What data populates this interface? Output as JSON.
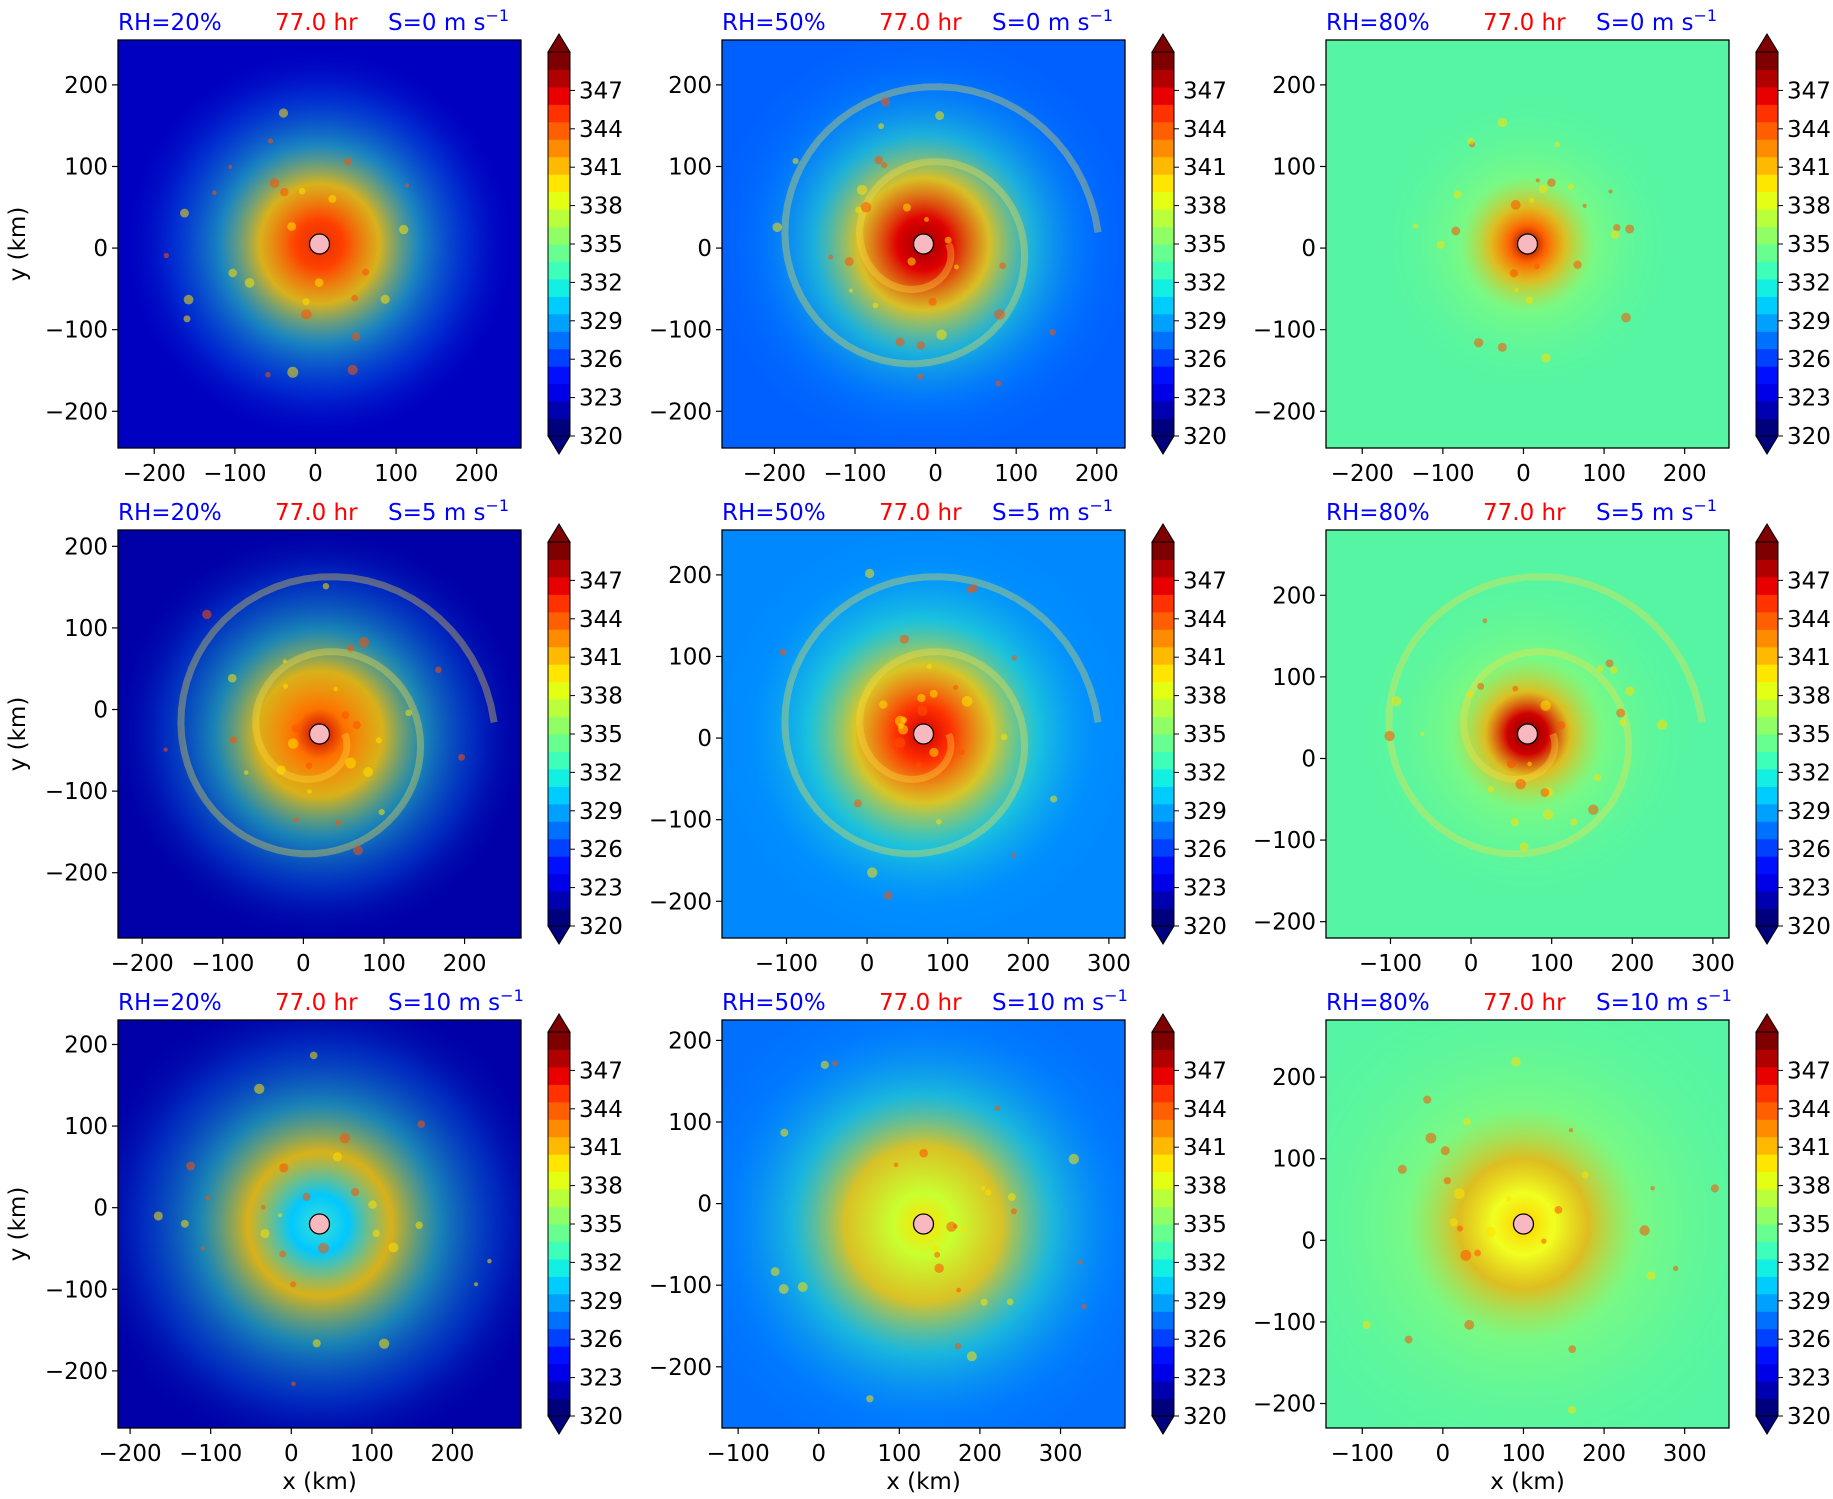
{
  "figure": {
    "colorbar": {
      "ticks": [
        347,
        344,
        341,
        338,
        335,
        332,
        329,
        326,
        323,
        320
      ],
      "vmin": 320,
      "vmax": 350,
      "extend": "both",
      "colors": [
        "#00007f",
        "#0000b0",
        "#0000e8",
        "#0010ff",
        "#0040ff",
        "#0070ff",
        "#00a0ff",
        "#00ccff",
        "#13f0e3",
        "#3dffba",
        "#66ff90",
        "#90ff66",
        "#baff3c",
        "#e3ff13",
        "#ffe600",
        "#ffb900",
        "#ff8c00",
        "#ff5f00",
        "#ff3200",
        "#e80000",
        "#b10000",
        "#7f0000"
      ]
    },
    "panels": [
      {
        "rh": "RH=20%",
        "time": "77.0 hr",
        "shear": "S=0 m s",
        "sup": "−1",
        "center": [
          5,
          5
        ],
        "xticks": [
          -200,
          -100,
          0,
          100,
          200
        ],
        "xtick_labels": [
          "−200",
          "−100",
          "0",
          "100",
          "200"
        ],
        "yticks": [
          200,
          100,
          0,
          -100,
          -200
        ],
        "ytick_labels": [
          "200",
          "100",
          "0",
          "−100",
          "−200"
        ],
        "xlim": [
          -245,
          255
        ],
        "ylim": [
          -245,
          255
        ],
        "xlabel": "",
        "ylabel": "y (km)",
        "field": {
          "bg": "#0000c0",
          "core": "#ff4000",
          "eye": "#e03000",
          "r": 200,
          "spiral": false
        }
      },
      {
        "rh": "RH=50%",
        "time": "77.0 hr",
        "shear": "S=0 m s",
        "sup": "−1",
        "center": [
          -15,
          5
        ],
        "xticks": [
          -200,
          -100,
          0,
          100,
          200
        ],
        "xtick_labels": [
          "−200",
          "−100",
          "0",
          "100",
          "200"
        ],
        "yticks": [
          200,
          100,
          0,
          -100,
          -200
        ],
        "ytick_labels": [
          "200",
          "100",
          "0",
          "−100",
          "−200"
        ],
        "xlim": [
          -265,
          235
        ],
        "ylim": [
          -245,
          255
        ],
        "xlabel": "",
        "ylabel": "",
        "field": {
          "bg": "#0060ff",
          "core": "#e00000",
          "eye": "#9a0000",
          "r": 220,
          "spiral": true
        }
      },
      {
        "rh": "RH=80%",
        "time": "77.0 hr",
        "shear": "S=0 m s",
        "sup": "−1",
        "center": [
          5,
          5
        ],
        "xticks": [
          -200,
          -100,
          0,
          100,
          200
        ],
        "xtick_labels": [
          "−200",
          "−100",
          "0",
          "100",
          "200"
        ],
        "yticks": [
          200,
          100,
          0,
          -100,
          -200
        ],
        "ytick_labels": [
          "200",
          "100",
          "0",
          "−100",
          "−200"
        ],
        "xlim": [
          -245,
          255
        ],
        "ylim": [
          -245,
          255
        ],
        "xlabel": "",
        "ylabel": "",
        "field": {
          "bg": "#56f5a3",
          "core": "#ff6000",
          "eye": "#7f0000",
          "r": 150,
          "spiral": false
        }
      },
      {
        "rh": "RH=20%",
        "time": "77.0 hr",
        "shear": "S=5 m s",
        "sup": "−1",
        "center": [
          20,
          -30
        ],
        "xticks": [
          -200,
          -100,
          0,
          100,
          200
        ],
        "xtick_labels": [
          "−200",
          "−100",
          "0",
          "100",
          "200"
        ],
        "yticks": [
          200,
          100,
          0,
          -100,
          -200
        ],
        "ytick_labels": [
          "200",
          "100",
          "0",
          "−100",
          "−200"
        ],
        "xlim": [
          -230,
          270
        ],
        "ylim": [
          -280,
          220
        ],
        "xlabel": "",
        "ylabel": "y (km)",
        "field": {
          "bg": "#0000a8",
          "core": "#ff7000",
          "eye": "#c00000",
          "r": 210,
          "spiral": true
        }
      },
      {
        "rh": "RH=50%",
        "time": "77.0 hr",
        "shear": "S=5 m s",
        "sup": "−1",
        "center": [
          70,
          5
        ],
        "xticks": [
          -100,
          0,
          100,
          200,
          300
        ],
        "xtick_labels": [
          "−100",
          "0",
          "100",
          "200",
          "300"
        ],
        "yticks": [
          200,
          100,
          0,
          -100,
          -200
        ],
        "ytick_labels": [
          "200",
          "100",
          "0",
          "−100",
          "−200"
        ],
        "xlim": [
          -180,
          320
        ],
        "ylim": [
          -245,
          255
        ],
        "xlabel": "",
        "ylabel": "",
        "field": {
          "bg": "#0088ff",
          "core": "#ff3000",
          "eye": "#d00000",
          "r": 230,
          "spiral": true
        }
      },
      {
        "rh": "RH=80%",
        "time": "77.0 hr",
        "shear": "S=5 m s",
        "sup": "−1",
        "center": [
          70,
          30
        ],
        "xticks": [
          -100,
          0,
          100,
          200,
          300
        ],
        "xtick_labels": [
          "−100",
          "0",
          "100",
          "200",
          "300"
        ],
        "yticks": [
          200,
          100,
          0,
          -100,
          -200
        ],
        "ytick_labels": [
          "200",
          "100",
          "0",
          "−100",
          "−200"
        ],
        "xlim": [
          -180,
          320
        ],
        "ylim": [
          -220,
          280
        ],
        "xlabel": "",
        "ylabel": "",
        "field": {
          "bg": "#56f5a3",
          "core": "#d00000",
          "eye": "#7f0000",
          "r": 170,
          "spiral": true
        }
      },
      {
        "rh": "RH=20%",
        "time": "77.0 hr",
        "shear": "S=10 m s",
        "sup": "−1",
        "center": [
          35,
          -20
        ],
        "xticks": [
          -200,
          -100,
          0,
          100,
          200
        ],
        "xtick_labels": [
          "−200",
          "−100",
          "0",
          "100",
          "200"
        ],
        "yticks": [
          200,
          100,
          0,
          -100,
          -200
        ],
        "ytick_labels": [
          "200",
          "100",
          "0",
          "−100",
          "−200"
        ],
        "xlim": [
          -215,
          285
        ],
        "ylim": [
          -270,
          230
        ],
        "xlabel": "x (km)",
        "ylabel": "y (km)",
        "field": {
          "bg": "#0000a8",
          "core": "#00c8ff",
          "eye": "#40e0d0",
          "r": 240,
          "spiral": false
        }
      },
      {
        "rh": "RH=50%",
        "time": "77.0 hr",
        "shear": "S=10 m s",
        "sup": "−1",
        "center": [
          130,
          -25
        ],
        "xticks": [
          -100,
          0,
          100,
          200,
          300
        ],
        "xtick_labels": [
          "−100",
          "0",
          "100",
          "200",
          "300"
        ],
        "yticks": [
          200,
          100,
          0,
          -100,
          -200
        ],
        "ytick_labels": [
          "200",
          "100",
          "0",
          "−100",
          "−200"
        ],
        "xlim": [
          -120,
          380
        ],
        "ylim": [
          -275,
          225
        ],
        "xlabel": "x (km)",
        "ylabel": "",
        "field": {
          "bg": "#0070ff",
          "core": "#c8ff30",
          "eye": "#ffe000",
          "r": 260,
          "spiral": false
        }
      },
      {
        "rh": "RH=80%",
        "time": "77.0 hr",
        "shear": "S=10 m s",
        "sup": "−1",
        "center": [
          100,
          20
        ],
        "xticks": [
          -100,
          0,
          100,
          200,
          300
        ],
        "xtick_labels": [
          "−100",
          "0",
          "100",
          "200",
          "300"
        ],
        "yticks": [
          200,
          100,
          0,
          -100,
          -200
        ],
        "ytick_labels": [
          "200",
          "100",
          "0",
          "−100",
          "−200"
        ],
        "xlim": [
          -145,
          355
        ],
        "ylim": [
          -230,
          270
        ],
        "xlabel": "x (km)",
        "ylabel": "",
        "field": {
          "bg": "#56f5a3",
          "core": "#f0ff20",
          "eye": "#ffd000",
          "r": 260,
          "spiral": false
        }
      }
    ],
    "title_colors": {
      "rh": "#0000ff",
      "time": "#ff0000",
      "shear": "#0000ff"
    },
    "center_marker_color": "#f8b8c0"
  }
}
